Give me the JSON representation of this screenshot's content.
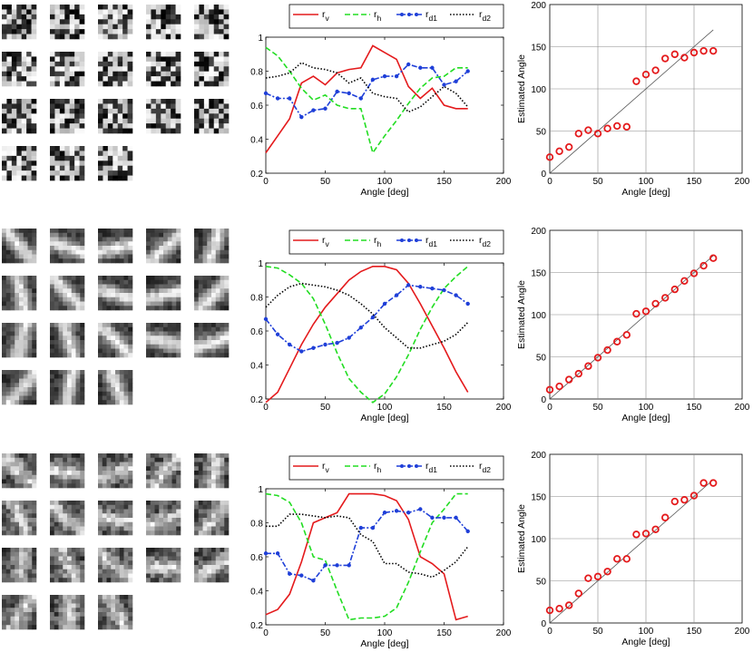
{
  "colors": {
    "r_v": "#e41a1c",
    "r_h": "#22dd22",
    "r_d1": "#1f3fd8",
    "r_d2": "#000000",
    "estimate": "#e41a1c",
    "grid": "#8a8a8a"
  },
  "tiles": [
    {
      "seed": 11,
      "scale": 1,
      "orient": 0.0,
      "stripe": 0.0
    },
    {
      "seed": 37,
      "scale": 2,
      "orient": 0.55,
      "stripe": 0.75
    },
    {
      "seed": 73,
      "scale": 2,
      "orient": 0.6,
      "stripe": 0.55
    }
  ],
  "chart_data": [
    {
      "type": "line",
      "title": "",
      "xlabel": "Angle [deg]",
      "ylabel": "",
      "xlim": [
        0,
        200
      ],
      "ylim": [
        0.2,
        1.0
      ],
      "xticks": [
        "0",
        "50",
        "100",
        "150",
        "200"
      ],
      "yticks": [
        "0.2",
        "0.4",
        "0.6",
        "0.8",
        "1"
      ],
      "legend": [
        "r_v",
        "r_h",
        "r_d1",
        "r_d2"
      ],
      "x": [
        0,
        10,
        20,
        30,
        40,
        50,
        60,
        70,
        80,
        90,
        100,
        110,
        120,
        130,
        140,
        150,
        160,
        170
      ],
      "series": [
        {
          "name": "r_v",
          "values": [
            0.32,
            0.42,
            0.52,
            0.73,
            0.77,
            0.72,
            0.79,
            0.81,
            0.82,
            0.95,
            0.91,
            0.87,
            0.71,
            0.64,
            0.7,
            0.6,
            0.58,
            0.58
          ]
        },
        {
          "name": "r_h",
          "values": [
            0.94,
            0.89,
            0.8,
            0.7,
            0.63,
            0.66,
            0.6,
            0.58,
            0.58,
            0.32,
            0.42,
            0.51,
            0.61,
            0.7,
            0.76,
            0.77,
            0.82,
            0.82
          ]
        },
        {
          "name": "r_d1",
          "values": [
            0.67,
            0.64,
            0.64,
            0.53,
            0.57,
            0.58,
            0.68,
            0.67,
            0.64,
            0.75,
            0.77,
            0.77,
            0.84,
            0.82,
            0.82,
            0.72,
            0.74,
            0.8
          ]
        },
        {
          "name": "r_d2",
          "values": [
            0.76,
            0.77,
            0.79,
            0.85,
            0.82,
            0.81,
            0.79,
            0.73,
            0.76,
            0.67,
            0.65,
            0.64,
            0.56,
            0.59,
            0.65,
            0.71,
            0.67,
            0.59
          ]
        }
      ]
    },
    {
      "type": "scatter",
      "title": "",
      "xlabel": "Angle [deg]",
      "ylabel": "Estimated Angle",
      "xlim": [
        0,
        200
      ],
      "ylim": [
        0,
        200
      ],
      "xticks": [
        "0",
        "50",
        "100",
        "150",
        "200"
      ],
      "yticks": [
        "0",
        "50",
        "100",
        "150",
        "200"
      ],
      "grid": true,
      "x": [
        0,
        10,
        20,
        30,
        40,
        50,
        60,
        70,
        80,
        90,
        100,
        110,
        120,
        130,
        140,
        150,
        160,
        170
      ],
      "y": [
        19,
        26,
        31,
        47,
        51,
        47,
        53,
        56,
        55,
        109,
        117,
        122,
        136,
        141,
        137,
        143,
        145,
        145
      ]
    },
    {
      "type": "line",
      "title": "",
      "xlabel": "Angle [deg]",
      "ylabel": "",
      "xlim": [
        0,
        200
      ],
      "ylim": [
        0.2,
        1.0
      ],
      "xticks": [
        "0",
        "50",
        "100",
        "150",
        "200"
      ],
      "yticks": [
        "0.2",
        "0.4",
        "0.6",
        "0.8",
        "1"
      ],
      "legend": [
        "r_v",
        "r_h",
        "r_d1",
        "r_d2"
      ],
      "x": [
        0,
        10,
        20,
        30,
        40,
        50,
        60,
        70,
        80,
        90,
        100,
        110,
        120,
        130,
        140,
        150,
        160,
        170
      ],
      "series": [
        {
          "name": "r_v",
          "values": [
            0.18,
            0.24,
            0.38,
            0.52,
            0.64,
            0.74,
            0.82,
            0.9,
            0.95,
            0.98,
            0.98,
            0.96,
            0.88,
            0.76,
            0.63,
            0.5,
            0.36,
            0.24
          ]
        },
        {
          "name": "r_h",
          "values": [
            0.98,
            0.97,
            0.93,
            0.88,
            0.79,
            0.64,
            0.47,
            0.32,
            0.24,
            0.18,
            0.23,
            0.33,
            0.46,
            0.61,
            0.74,
            0.85,
            0.92,
            0.98
          ]
        },
        {
          "name": "r_d1",
          "values": [
            0.67,
            0.58,
            0.52,
            0.48,
            0.5,
            0.52,
            0.53,
            0.56,
            0.62,
            0.68,
            0.76,
            0.81,
            0.87,
            0.86,
            0.85,
            0.84,
            0.81,
            0.76
          ]
        },
        {
          "name": "r_d2",
          "values": [
            0.74,
            0.81,
            0.86,
            0.88,
            0.87,
            0.86,
            0.84,
            0.81,
            0.76,
            0.7,
            0.62,
            0.56,
            0.5,
            0.5,
            0.52,
            0.54,
            0.58,
            0.65
          ]
        }
      ]
    },
    {
      "type": "scatter",
      "title": "",
      "xlabel": "Angle [deg]",
      "ylabel": "Estimated Angle",
      "xlim": [
        0,
        200
      ],
      "ylim": [
        0,
        200
      ],
      "xticks": [
        "0",
        "50",
        "100",
        "150",
        "200"
      ],
      "yticks": [
        "0",
        "50",
        "100",
        "150",
        "200"
      ],
      "grid": true,
      "x": [
        0,
        10,
        20,
        30,
        40,
        50,
        60,
        70,
        80,
        90,
        100,
        110,
        120,
        130,
        140,
        150,
        160,
        170
      ],
      "y": [
        11,
        15,
        23,
        30,
        39,
        49,
        58,
        68,
        76,
        101,
        104,
        113,
        120,
        130,
        140,
        149,
        158,
        167
      ]
    },
    {
      "type": "line",
      "title": "",
      "xlabel": "Angle [deg]",
      "ylabel": "",
      "xlim": [
        0,
        200
      ],
      "ylim": [
        0.2,
        1.0
      ],
      "xticks": [
        "0",
        "50",
        "100",
        "150",
        "200"
      ],
      "yticks": [
        "0.2",
        "0.4",
        "0.6",
        "0.8",
        "1"
      ],
      "legend": [
        "r_v",
        "r_h",
        "r_d1",
        "r_d2"
      ],
      "x": [
        0,
        10,
        20,
        30,
        40,
        50,
        60,
        70,
        80,
        90,
        100,
        110,
        120,
        130,
        140,
        150,
        160,
        170
      ],
      "series": [
        {
          "name": "r_v",
          "values": [
            0.26,
            0.29,
            0.38,
            0.57,
            0.8,
            0.83,
            0.86,
            0.97,
            0.97,
            0.97,
            0.96,
            0.93,
            0.82,
            0.6,
            0.56,
            0.5,
            0.23,
            0.25
          ]
        },
        {
          "name": "r_h",
          "values": [
            0.97,
            0.96,
            0.92,
            0.8,
            0.6,
            0.58,
            0.4,
            0.23,
            0.24,
            0.24,
            0.25,
            0.3,
            0.45,
            0.63,
            0.8,
            0.88,
            0.97,
            0.97
          ]
        },
        {
          "name": "r_d1",
          "values": [
            0.62,
            0.62,
            0.5,
            0.49,
            0.46,
            0.55,
            0.55,
            0.55,
            0.77,
            0.77,
            0.86,
            0.87,
            0.86,
            0.88,
            0.83,
            0.83,
            0.83,
            0.75
          ]
        },
        {
          "name": "r_d2",
          "values": [
            0.78,
            0.78,
            0.85,
            0.85,
            0.84,
            0.83,
            0.84,
            0.83,
            0.73,
            0.69,
            0.56,
            0.56,
            0.51,
            0.5,
            0.48,
            0.52,
            0.57,
            0.66
          ]
        }
      ]
    },
    {
      "type": "scatter",
      "title": "",
      "xlabel": "Angle [deg]",
      "ylabel": "Estimated Angle",
      "xlim": [
        0,
        200
      ],
      "ylim": [
        0,
        200
      ],
      "xticks": [
        "0",
        "50",
        "100",
        "150",
        "200"
      ],
      "yticks": [
        "0",
        "50",
        "100",
        "150",
        "200"
      ],
      "grid": true,
      "x": [
        0,
        10,
        20,
        30,
        40,
        50,
        60,
        70,
        80,
        90,
        100,
        110,
        120,
        130,
        140,
        150,
        160,
        170
      ],
      "y": [
        15,
        17,
        21,
        35,
        53,
        55,
        61,
        76,
        76,
        105,
        106,
        111,
        125,
        144,
        146,
        151,
        166,
        166
      ]
    }
  ]
}
